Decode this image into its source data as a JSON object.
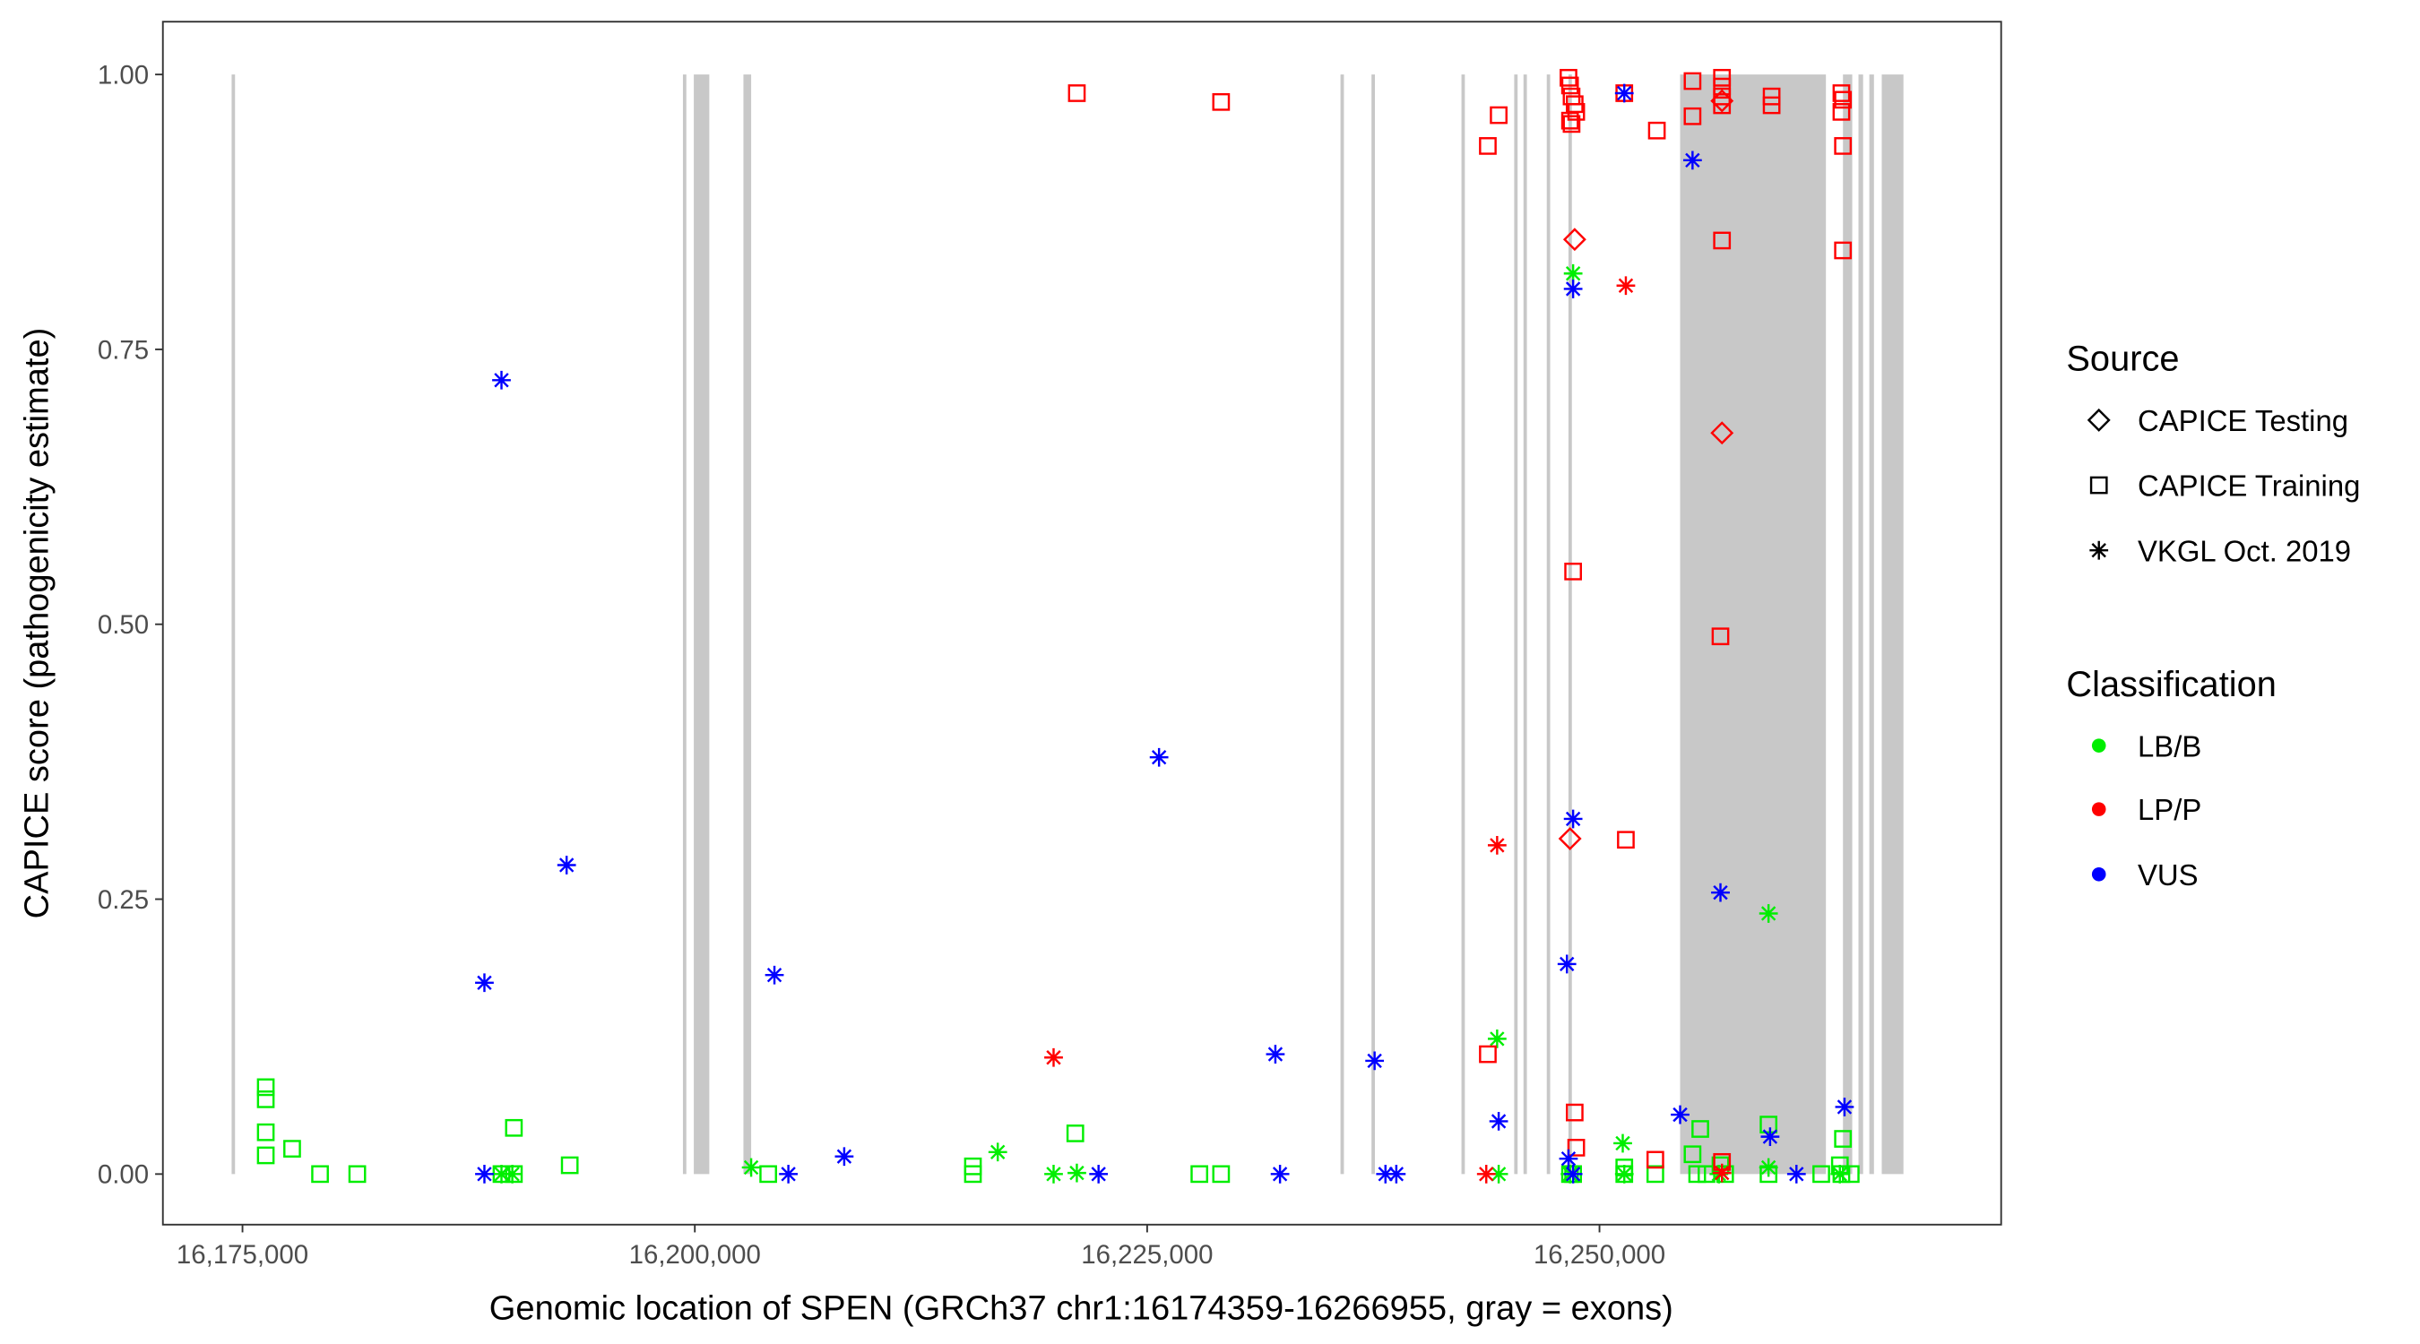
{
  "chart_data": {
    "type": "scatter",
    "xlabel": "Genomic location of SPEN (GRCh37 chr1:16174359-16266955, gray = exons)",
    "ylabel": "CAPICE score (pathogenicity estimate)",
    "xlim": [
      16170600,
      16272200
    ],
    "ylim": [
      -0.046,
      1.048
    ],
    "x_ticks": [
      16175000,
      16200000,
      16225000,
      16250000
    ],
    "x_tick_labels": [
      "16,175,000",
      "16,200,000",
      "16,225,000",
      "16,250,000"
    ],
    "y_ticks": [
      0,
      0.25,
      0.5,
      0.75,
      1.0
    ],
    "y_tick_labels": [
      "0.00",
      "0.25",
      "0.50",
      "0.75",
      "1.00"
    ],
    "grid": false,
    "exon_color": "#c8c8c8",
    "exons": [
      [
        16174400,
        16174571
      ],
      [
        16199343,
        16199514
      ],
      [
        16199943,
        16200800
      ],
      [
        16202686,
        16203114
      ],
      [
        16235686,
        16235857
      ],
      [
        16237400,
        16237571
      ],
      [
        16242371,
        16242543
      ],
      [
        16245286,
        16245457
      ],
      [
        16245800,
        16245971
      ],
      [
        16247086,
        16247257
      ],
      [
        16248286,
        16248457
      ],
      [
        16254457,
        16262514
      ],
      [
        16263457,
        16263971
      ],
      [
        16264314,
        16264571
      ],
      [
        16264914,
        16265171
      ],
      [
        16265600,
        16266800
      ]
    ],
    "legend": {
      "placement": "right",
      "source": {
        "title": "Source",
        "items": [
          {
            "label": "CAPICE Testing",
            "shape": "diamond"
          },
          {
            "label": "CAPICE Training",
            "shape": "square"
          },
          {
            "label": "VKGL Oct. 2019",
            "shape": "asterisk"
          }
        ]
      },
      "classification": {
        "title": "Classification",
        "items": [
          {
            "label": "LB/B",
            "color": "#00ee00"
          },
          {
            "label": "LP/P",
            "color": "#ff0000"
          },
          {
            "label": "VUS",
            "color": "#0000ff"
          }
        ]
      }
    },
    "series": [
      {
        "source": "CAPICE Training",
        "classification": "LB/B",
        "points": [
          [
            16176286,
            0.079
          ],
          [
            16176286,
            0.068
          ],
          [
            16176286,
            0.038
          ],
          [
            16176286,
            0.017
          ],
          [
            16177743,
            0.023
          ],
          [
            16179286,
            0
          ],
          [
            16181343,
            0
          ],
          [
            16190000,
            0.042
          ],
          [
            16193086,
            0.008
          ],
          [
            16190000,
            0
          ],
          [
            16189314,
            0
          ],
          [
            16204057,
            0
          ],
          [
            16215371,
            0.007
          ],
          [
            16215371,
            0
          ],
          [
            16221029,
            0.037
          ],
          [
            16227886,
            0
          ],
          [
            16229086,
            0
          ],
          [
            16248543,
            0
          ],
          [
            16248371,
            0
          ],
          [
            16251371,
            0.006
          ],
          [
            16251371,
            0
          ],
          [
            16253086,
            0
          ],
          [
            16255143,
            0.018
          ],
          [
            16255571,
            0.041
          ],
          [
            16256686,
            0.008
          ],
          [
            16256943,
            0
          ],
          [
            16255400,
            0
          ],
          [
            16259343,
            0.045
          ],
          [
            16259343,
            0
          ],
          [
            16262257,
            0
          ],
          [
            16263286,
            0.008
          ],
          [
            16263457,
            0.032
          ],
          [
            16263371,
            0
          ],
          [
            16263886,
            0
          ],
          [
            16255914,
            0
          ]
        ]
      },
      {
        "source": "VKGL Oct. 2019",
        "classification": "LB/B",
        "points": [
          [
            16189314,
            0
          ],
          [
            16189914,
            0
          ],
          [
            16203114,
            0.006
          ],
          [
            16216743,
            0.02
          ],
          [
            16219829,
            0
          ],
          [
            16221114,
            0.001
          ],
          [
            16244343,
            0.123
          ],
          [
            16244429,
            0
          ],
          [
            16248543,
            0.819
          ],
          [
            16248371,
            0
          ],
          [
            16251286,
            0.028
          ],
          [
            16251371,
            0
          ],
          [
            16259343,
            0.237
          ],
          [
            16259343,
            0.006
          ],
          [
            16256600,
            0
          ],
          [
            16263286,
            0
          ]
        ]
      },
      {
        "source": "CAPICE Training",
        "classification": "LP/P",
        "points": [
          [
            16221114,
            0.983
          ],
          [
            16229086,
            0.975
          ],
          [
            16243829,
            0.935
          ],
          [
            16244429,
            0.963
          ],
          [
            16248286,
            0.997
          ],
          [
            16248371,
            0.99
          ],
          [
            16248457,
            0.98
          ],
          [
            16248629,
            0.973
          ],
          [
            16248714,
            0.966
          ],
          [
            16248371,
            0.958
          ],
          [
            16248457,
            0.955
          ],
          [
            16251371,
            0.983
          ],
          [
            16253171,
            0.949
          ],
          [
            16255143,
            0.994
          ],
          [
            16255143,
            0.962
          ],
          [
            16256771,
            0.997
          ],
          [
            16256771,
            0.989
          ],
          [
            16256771,
            0.98
          ],
          [
            16256771,
            0.972
          ],
          [
            16259514,
            0.98
          ],
          [
            16259514,
            0.972
          ],
          [
            16263371,
            0.983
          ],
          [
            16263457,
            0.977
          ],
          [
            16263371,
            0.966
          ],
          [
            16263457,
            0.935
          ],
          [
            16256771,
            0.849
          ],
          [
            16263457,
            0.84
          ],
          [
            16248543,
            0.548
          ],
          [
            16256686,
            0.489
          ],
          [
            16251457,
            0.304
          ],
          [
            16243829,
            0.109
          ],
          [
            16248629,
            0.056
          ],
          [
            16248714,
            0.024
          ],
          [
            16253086,
            0.013
          ],
          [
            16256771,
            0.011
          ]
        ]
      },
      {
        "source": "CAPICE Testing",
        "classification": "LP/P",
        "points": [
          [
            16248629,
            0.85
          ],
          [
            16256771,
            0.674
          ],
          [
            16248371,
            0.305
          ],
          [
            16256771,
            0.976
          ]
        ]
      },
      {
        "source": "VKGL Oct. 2019",
        "classification": "LP/P",
        "points": [
          [
            16251457,
            0.808
          ],
          [
            16244343,
            0.299
          ],
          [
            16219829,
            0.106
          ],
          [
            16243743,
            0
          ],
          [
            16256771,
            0.001
          ]
        ]
      },
      {
        "source": "VKGL Oct. 2019",
        "classification": "VUS",
        "points": [
          [
            16189314,
            0.722
          ],
          [
            16192914,
            0.281
          ],
          [
            16188371,
            0.174
          ],
          [
            16204400,
            0.181
          ],
          [
            16225657,
            0.379
          ],
          [
            16232086,
            0.109
          ],
          [
            16237571,
            0.103
          ],
          [
            16244429,
            0.048
          ],
          [
            16248543,
            0.323
          ],
          [
            16248200,
            0.191
          ],
          [
            16248543,
            0.805
          ],
          [
            16251371,
            0.983
          ],
          [
            16255143,
            0.922
          ],
          [
            16256686,
            0.256
          ],
          [
            16254457,
            0.054
          ],
          [
            16259429,
            0.034
          ],
          [
            16263543,
            0.061
          ],
          [
            16248286,
            0.014
          ],
          [
            16188371,
            0
          ],
          [
            16205171,
            0
          ],
          [
            16208257,
            0.016
          ],
          [
            16222314,
            0
          ],
          [
            16232343,
            0
          ],
          [
            16238171,
            0
          ],
          [
            16238771,
            0
          ],
          [
            16260886,
            0
          ],
          [
            16248543,
            0
          ]
        ]
      }
    ]
  }
}
